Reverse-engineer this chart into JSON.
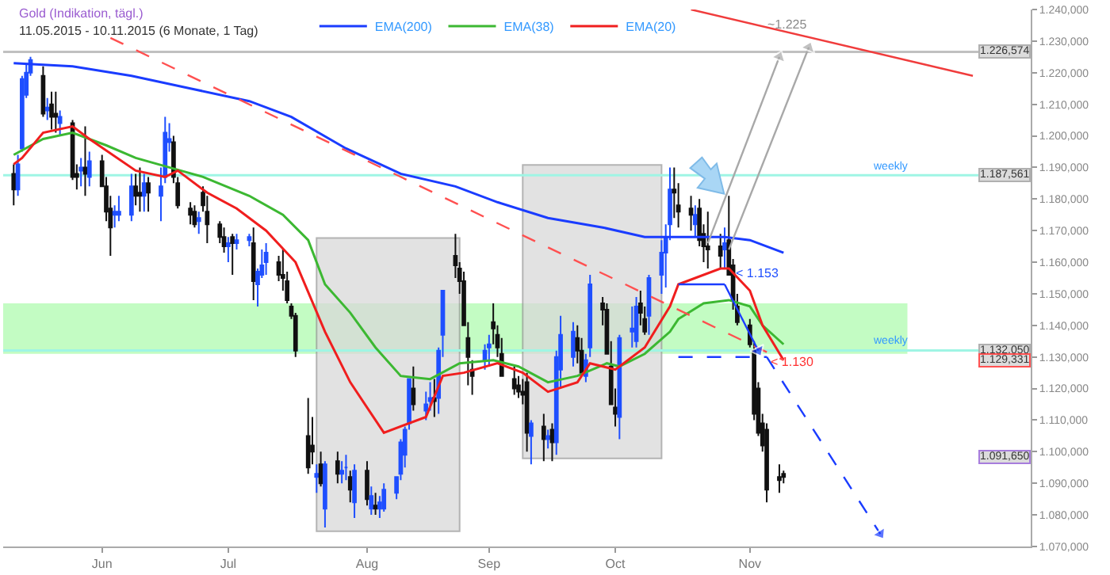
{
  "chart_data": {
    "type": "candlestick",
    "title": "Gold (Indikation, tägl.)",
    "subtitle": "11.05.2015 - 10.11.2015 (6 Monate, 1 Tag)",
    "x": [
      "2015-05-11",
      "2015-05-12",
      "2015-05-13",
      "2015-05-14",
      "2015-05-15",
      "2015-05-18",
      "2015-05-19",
      "2015-05-20",
      "2015-05-21",
      "2015-05-22",
      "2015-05-25",
      "2015-05-26",
      "2015-05-27",
      "2015-05-28",
      "2015-05-29",
      "2015-06-01",
      "2015-06-02",
      "2015-06-03",
      "2015-06-04",
      "2015-06-05",
      "2015-06-08",
      "2015-06-09",
      "2015-06-10",
      "2015-06-11",
      "2015-06-12",
      "2015-06-15",
      "2015-06-16",
      "2015-06-17",
      "2015-06-18",
      "2015-06-19",
      "2015-06-22",
      "2015-06-23",
      "2015-06-24",
      "2015-06-25",
      "2015-06-26",
      "2015-06-29",
      "2015-06-30",
      "2015-07-01",
      "2015-07-02",
      "2015-07-03",
      "2015-07-06",
      "2015-07-07",
      "2015-07-08",
      "2015-07-09",
      "2015-07-10",
      "2015-07-13",
      "2015-07-14",
      "2015-07-15",
      "2015-07-16",
      "2015-07-17",
      "2015-07-20",
      "2015-07-21",
      "2015-07-22",
      "2015-07-23",
      "2015-07-24",
      "2015-07-27",
      "2015-07-28",
      "2015-07-29",
      "2015-07-30",
      "2015-07-31",
      "2015-08-03",
      "2015-08-04",
      "2015-08-05",
      "2015-08-06",
      "2015-08-07",
      "2015-08-10",
      "2015-08-11",
      "2015-08-12",
      "2015-08-13",
      "2015-08-14",
      "2015-08-17",
      "2015-08-18",
      "2015-08-19",
      "2015-08-20",
      "2015-08-21",
      "2015-08-24",
      "2015-08-25",
      "2015-08-26",
      "2015-08-27",
      "2015-08-28",
      "2015-08-31",
      "2015-09-01",
      "2015-09-02",
      "2015-09-03",
      "2015-09-04",
      "2015-09-07",
      "2015-09-08",
      "2015-09-09",
      "2015-09-10",
      "2015-09-11",
      "2015-09-14",
      "2015-09-15",
      "2015-09-16",
      "2015-09-17",
      "2015-09-18",
      "2015-09-21",
      "2015-09-22",
      "2015-09-23",
      "2015-09-24",
      "2015-09-25",
      "2015-09-28",
      "2015-09-29",
      "2015-09-30",
      "2015-10-01",
      "2015-10-02",
      "2015-10-05",
      "2015-10-06",
      "2015-10-07",
      "2015-10-08",
      "2015-10-09",
      "2015-10-12",
      "2015-10-13",
      "2015-10-14",
      "2015-10-15",
      "2015-10-16",
      "2015-10-19",
      "2015-10-20",
      "2015-10-21",
      "2015-10-22",
      "2015-10-23",
      "2015-10-26",
      "2015-10-27",
      "2015-10-28",
      "2015-10-29",
      "2015-10-30",
      "2015-11-02",
      "2015-11-03",
      "2015-11-04",
      "2015-11-05",
      "2015-11-06",
      "2015-11-09",
      "2015-11-10"
    ],
    "ohlc": [
      [
        1188,
        1191,
        1178,
        1183
      ],
      [
        1183,
        1194,
        1181,
        1191
      ],
      [
        1196,
        1219,
        1195,
        1218
      ],
      [
        1213,
        1223,
        1212,
        1220
      ],
      [
        1220,
        1225,
        1219,
        1224
      ],
      [
        1219,
        1222,
        1206,
        1207
      ],
      [
        1208,
        1212,
        1205,
        1209
      ],
      [
        1210,
        1214,
        1202,
        1206
      ],
      [
        1207,
        1214,
        1201,
        1206
      ],
      [
        1204,
        1208,
        1200,
        1206
      ],
      [
        1204,
        1205,
        1186,
        1187
      ],
      [
        1188,
        1191,
        1183,
        1187
      ],
      [
        1189,
        1193,
        1184,
        1190
      ],
      [
        1190,
        1203,
        1181,
        1188
      ],
      [
        1187,
        1195,
        1184,
        1192
      ],
      [
        1192,
        1194,
        1184,
        1184
      ],
      [
        1184,
        1187,
        1173,
        1176
      ],
      [
        1177,
        1181,
        1162,
        1171
      ],
      [
        1175,
        1178,
        1171,
        1176
      ],
      [
        1175,
        1181,
        1173,
        1176
      ],
      [
        1175,
        1188,
        1173,
        1184
      ],
      [
        1184,
        1188,
        1178,
        1181
      ],
      [
        1182,
        1190,
        1176,
        1181
      ],
      [
        1181,
        1188,
        1176,
        1185
      ],
      [
        1185,
        1187,
        1176,
        1182
      ],
      [
        1181,
        1190,
        1173,
        1184
      ],
      [
        1187,
        1206,
        1185,
        1201
      ],
      [
        1198,
        1204,
        1195,
        1199
      ],
      [
        1198,
        1200,
        1185,
        1187
      ],
      [
        1185,
        1187,
        1177,
        1178
      ],
      [
        1177,
        1179,
        1172,
        1175
      ],
      [
        1176,
        1178,
        1171,
        1172
      ],
      [
        1173,
        1176,
        1169,
        1174
      ],
      [
        1182,
        1184,
        1176,
        1178
      ],
      [
        1176,
        1181,
        1166,
        1172
      ],
      [
        1172,
        1173,
        1166,
        1168
      ],
      [
        1168,
        1171,
        1163,
        1165
      ],
      [
        1165,
        1168,
        1160,
        1166
      ],
      [
        1168,
        1169,
        1156,
        1166
      ],
      [
        1166,
        1169,
        1164,
        1167
      ],
      [
        1167,
        1169,
        1165,
        1168
      ],
      [
        1166,
        1171,
        1148,
        1154
      ],
      [
        1153,
        1158,
        1146,
        1157
      ],
      [
        1156,
        1164,
        1155,
        1159
      ],
      [
        1160,
        1166,
        1156,
        1163
      ],
      [
        1160,
        1162,
        1154,
        1156
      ],
      [
        1156,
        1164,
        1151,
        1155
      ],
      [
        1154,
        1157,
        1147,
        1148
      ],
      [
        1146,
        1147,
        1142,
        1143
      ],
      [
        1143,
        1144,
        1130,
        1132
      ],
      [
        1105,
        1117,
        1093,
        1095
      ],
      [
        1102,
        1111,
        1096,
        1100
      ],
      [
        1092,
        1096,
        1087,
        1093
      ],
      [
        1096,
        1100,
        1089,
        1090
      ],
      [
        1082,
        1097,
        1076,
        1096
      ],
      [
        1097,
        1100,
        1090,
        1093
      ],
      [
        1093,
        1097,
        1090,
        1094
      ],
      [
        1095,
        1099,
        1091,
        1095
      ],
      [
        1092,
        1094,
        1084,
        1088
      ],
      [
        1084,
        1096,
        1079,
        1094
      ],
      [
        1094,
        1097,
        1083,
        1085
      ],
      [
        1082,
        1089,
        1080,
        1086
      ],
      [
        1083,
        1087,
        1080,
        1082
      ],
      [
        1082,
        1086,
        1079,
        1084
      ],
      [
        1082,
        1090,
        1081,
        1088
      ],
      [
        1087,
        1092,
        1085,
        1092
      ],
      [
        1093,
        1104,
        1091,
        1103
      ],
      [
        1099,
        1108,
        1095,
        1107
      ],
      [
        1109,
        1123,
        1107,
        1123
      ],
      [
        1120,
        1127,
        1113,
        1115
      ],
      [
        1113,
        1119,
        1110,
        1115
      ],
      [
        1116,
        1122,
        1113,
        1117
      ],
      [
        1117,
        1123,
        1111,
        1116
      ],
      [
        1117,
        1133,
        1112,
        1132
      ],
      [
        1137,
        1151,
        1130,
        1151
      ],
      [
        1162,
        1169,
        1155,
        1159
      ],
      [
        1158,
        1160,
        1150,
        1154
      ],
      [
        1154,
        1157,
        1140,
        1140
      ],
      [
        1136,
        1141,
        1121,
        1130
      ],
      [
        1126,
        1129,
        1118,
        1124
      ],
      [
        1129,
        1134,
        1126,
        1132
      ],
      [
        1133,
        1137,
        1127,
        1134
      ],
      [
        1141,
        1147,
        1134,
        1139
      ],
      [
        1137,
        1140,
        1130,
        1133
      ],
      [
        1131,
        1136,
        1124,
        1124
      ],
      [
        1123,
        1127,
        1118,
        1120
      ],
      [
        1121,
        1124,
        1117,
        1119
      ],
      [
        1119,
        1123,
        1115,
        1118
      ],
      [
        1122,
        1125,
        1100,
        1106
      ],
      [
        1105,
        1110,
        1096,
        1109
      ],
      [
        1108,
        1112,
        1097,
        1104
      ],
      [
        1104,
        1107,
        1101,
        1105
      ],
      [
        1107,
        1109,
        1097,
        1103
      ],
      [
        1103,
        1132,
        1099,
        1130
      ],
      [
        1126,
        1143,
        1120,
        1137
      ],
      [
        1130,
        1141,
        1127,
        1138
      ],
      [
        1136,
        1140,
        1128,
        1132
      ],
      [
        1132,
        1136,
        1124,
        1125
      ],
      [
        1124,
        1131,
        1122,
        1129
      ],
      [
        1133,
        1156,
        1130,
        1153
      ],
      [
        1147,
        1149,
        1140,
        1145
      ],
      [
        1145,
        1147,
        1131,
        1131
      ],
      [
        1127,
        1135,
        1115,
        1115
      ],
      [
        1114,
        1120,
        1108,
        1112
      ],
      [
        1111,
        1137,
        1104,
        1136
      ],
      [
        1138,
        1146,
        1133,
        1139
      ],
      [
        1135,
        1149,
        1133,
        1146
      ],
      [
        1147,
        1151,
        1140,
        1144
      ],
      [
        1142,
        1146,
        1137,
        1138
      ],
      [
        1143,
        1156,
        1137,
        1155
      ],
      [
        1156,
        1167,
        1150,
        1163
      ],
      [
        1163,
        1172,
        1152,
        1168
      ],
      [
        1172,
        1190,
        1167,
        1183
      ],
      [
        1183,
        1190,
        1174,
        1182
      ],
      [
        1178,
        1185,
        1171,
        1176
      ],
      [
        1177,
        1181,
        1170,
        1175
      ],
      [
        1172,
        1178,
        1168,
        1175
      ],
      [
        1177,
        1180,
        1165,
        1167
      ],
      [
        1169,
        1172,
        1160,
        1165
      ],
      [
        1165,
        1176,
        1158,
        1164
      ],
      [
        1165,
        1169,
        1158,
        1162
      ],
      [
        1164,
        1171,
        1158,
        1166
      ],
      [
        1167,
        1181,
        1156,
        1156
      ],
      [
        1159,
        1161,
        1145,
        1148
      ],
      [
        1146,
        1150,
        1140,
        1141
      ],
      [
        1140,
        1142,
        1133,
        1134
      ],
      [
        1132,
        1135,
        1110,
        1112
      ],
      [
        1120,
        1122,
        1105,
        1106
      ],
      [
        1109,
        1112,
        1100,
        1102
      ],
      [
        1107,
        1109,
        1084,
        1088
      ],
      [
        1092,
        1096,
        1087,
        1091
      ],
      [
        1093,
        1094,
        1090,
        1092
      ]
    ],
    "series": [
      {
        "type": "line",
        "name": "EMA(200)",
        "color": "#1a3cff",
        "x": [
          "2015-05-11",
          "2015-05-25",
          "2015-06-08",
          "2015-06-22",
          "2015-07-06",
          "2015-07-16",
          "2015-07-29",
          "2015-08-11",
          "2015-08-24",
          "2015-09-03",
          "2015-09-15",
          "2015-09-28",
          "2015-10-08",
          "2015-10-14",
          "2015-10-27",
          "2015-11-02",
          "2015-11-10"
        ],
        "values": [
          1223,
          1222,
          1219,
          1215,
          1211,
          1206,
          1196,
          1188,
          1184,
          1179,
          1174,
          1171,
          1168,
          1168,
          1168,
          1167,
          1163
        ]
      },
      {
        "type": "line",
        "name": "EMA(38)",
        "color": "#3cb832",
        "x": [
          "2015-05-11",
          "2015-05-18",
          "2015-05-25",
          "2015-06-02",
          "2015-06-09",
          "2015-06-17",
          "2015-06-25",
          "2015-07-06",
          "2015-07-14",
          "2015-07-20",
          "2015-07-24",
          "2015-07-30",
          "2015-08-05",
          "2015-08-11",
          "2015-08-18",
          "2015-08-25",
          "2015-09-02",
          "2015-09-08",
          "2015-09-15",
          "2015-09-22",
          "2015-09-29",
          "2015-10-02",
          "2015-10-08",
          "2015-10-14",
          "2015-10-16",
          "2015-10-22",
          "2015-10-28",
          "2015-11-02",
          "2015-11-05",
          "2015-11-10"
        ],
        "values": [
          1194,
          1199,
          1201,
          1197,
          1193,
          1190,
          1187,
          1181,
          1175,
          1167,
          1153,
          1144,
          1133,
          1124,
          1123,
          1128,
          1129,
          1127,
          1122,
          1124,
          1128,
          1127,
          1131,
          1138,
          1142,
          1147,
          1148,
          1146,
          1140,
          1134
        ]
      },
      {
        "type": "line",
        "name": "EMA(20)",
        "color": "#f01e1e",
        "x": [
          "2015-05-11",
          "2015-05-13",
          "2015-05-18",
          "2015-05-25",
          "2015-05-29",
          "2015-06-09",
          "2015-06-16",
          "2015-06-19",
          "2015-06-26",
          "2015-07-03",
          "2015-07-10",
          "2015-07-17",
          "2015-07-24",
          "2015-07-30",
          "2015-08-07",
          "2015-08-17",
          "2015-08-21",
          "2015-08-26",
          "2015-09-03",
          "2015-09-09",
          "2015-09-15",
          "2015-09-22",
          "2015-09-25",
          "2015-10-01",
          "2015-10-08",
          "2015-10-14",
          "2015-10-16",
          "2015-10-26",
          "2015-10-28",
          "2015-11-02",
          "2015-11-05",
          "2015-11-10"
        ],
        "values": [
          1191,
          1193,
          1201,
          1203,
          1199,
          1189,
          1187,
          1189,
          1182,
          1177,
          1170,
          1160,
          1138,
          1122,
          1106,
          1111,
          1124,
          1125,
          1128,
          1125,
          1119,
          1122,
          1128,
          1126,
          1133,
          1146,
          1153,
          1158,
          1158,
          1151,
          1140,
          1129
        ]
      },
      {
        "type": "line",
        "color": "#ff5050",
        "line_style": "dashed",
        "x": [
          "2015-06-03",
          "2015-11-10"
        ],
        "values": [
          1231,
          1129
        ]
      },
      {
        "type": "line",
        "color": "#f03c3c",
        "x": [
          "2015-10-19",
          "2015-12-25"
        ],
        "values": [
          1240,
          1219
        ]
      },
      {
        "type": "line",
        "color": "#1a3cff",
        "x": [
          "2015-10-16",
          "2015-10-27"
        ],
        "values": [
          1153,
          1153
        ]
      },
      {
        "type": "line",
        "color": "#1a3cff",
        "marker": "triangle",
        "x": [
          "2015-10-27",
          "2015-11-04"
        ],
        "values": [
          1153,
          1132
        ]
      },
      {
        "type": "line",
        "color": "#1a3cff",
        "line_style": "dashed",
        "x": [
          "2015-10-16",
          "2015-11-06"
        ],
        "values": [
          1130,
          1130
        ]
      },
      {
        "type": "line",
        "color": "#1a3cff",
        "line_style": "dashed",
        "marker": "triangle",
        "x": [
          "2015-11-06",
          "2015-12-03"
        ],
        "values": [
          1130,
          1074
        ]
      },
      {
        "type": "line",
        "color": "#a8a8a8",
        "marker": "triangle",
        "x": [
          "2015-10-23",
          "2015-11-09"
        ],
        "values": [
          1166,
          1225
        ]
      },
      {
        "type": "line",
        "color": "#a8a8a8",
        "marker": "triangle",
        "x": [
          "2015-10-28",
          "2015-11-16"
        ],
        "values": [
          1164,
          1228
        ]
      }
    ],
    "legend": "top",
    "xlim": [
      "2015-05-08T12:00",
      "2016-01-07T18:00"
    ],
    "xticks": [
      {
        "value": "2015-06-01",
        "label": "Jun"
      },
      {
        "value": "2015-07-01",
        "label": "Jul"
      },
      {
        "value": "2015-08-03",
        "label": "Aug"
      },
      {
        "value": "2015-09-01",
        "label": "Sep"
      },
      {
        "value": "2015-10-01",
        "label": "Oct"
      },
      {
        "value": "2015-11-02",
        "label": "Nov"
      }
    ],
    "ylim": [
      1070,
      1240
    ],
    "yticks": [
      {
        "value": 1070,
        "label": "1.070,000"
      },
      {
        "value": 1080,
        "label": "1.080,000"
      },
      {
        "value": 1090,
        "label": "1.090,000"
      },
      {
        "value": 1100,
        "label": "1.100,000"
      },
      {
        "value": 1110,
        "label": "1.110,000"
      },
      {
        "value": 1120,
        "label": "1.120,000"
      },
      {
        "value": 1130,
        "label": "1.130,000"
      },
      {
        "value": 1140,
        "label": "1.140,000"
      },
      {
        "value": 1150,
        "label": "1.150,000"
      },
      {
        "value": 1160,
        "label": "1.160,000"
      },
      {
        "value": 1170,
        "label": "1.170,000"
      },
      {
        "value": 1180,
        "label": "1.180,000"
      },
      {
        "value": 1190,
        "label": "1.190,000"
      },
      {
        "value": 1200,
        "label": "1.200,000"
      },
      {
        "value": 1210,
        "label": "1.210,000"
      },
      {
        "value": 1220,
        "label": "1.220,000"
      },
      {
        "value": 1230,
        "label": "1.230,000"
      },
      {
        "value": 1240,
        "label": "1.240,000"
      }
    ],
    "ref_lines": [
      {
        "axis": "y",
        "value": 1226.574,
        "color": "#c0c0c0"
      },
      {
        "axis": "y",
        "value": 1187.561,
        "label": "weekly",
        "color": "#9ff5e4"
      },
      {
        "axis": "y",
        "value": 1132.05,
        "label": "weekly",
        "color": "#9ff5e4"
      }
    ],
    "bands": [
      {
        "axis": "y",
        "from": 1131,
        "to": 1147,
        "color": "#b8fcb8"
      },
      {
        "axis": "x",
        "from": "2015-07-22",
        "to": "2015-08-25",
        "color": "#d9d9d9"
      },
      {
        "axis": "x",
        "from": "2015-09-09",
        "to": "2015-10-12",
        "color": "#d9d9d9"
      }
    ],
    "annotations": [
      {
        "text": "~1.225",
        "x": "2015-11-11",
        "y": 1235
      },
      "< 1.153",
      "< 1.130",
      {
        "text": "1.226,574",
        "y": 1226.574
      },
      {
        "text": "1.187,561",
        "y": 1187.561
      },
      {
        "text": "1.132,050",
        "y": 1132.05
      },
      "1.129,331",
      "1.091,650"
    ]
  }
}
